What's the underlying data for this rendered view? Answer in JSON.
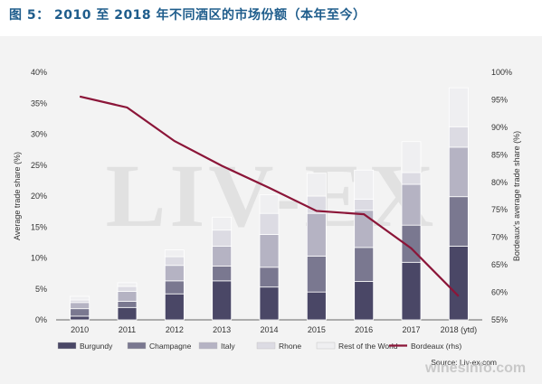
{
  "figure": {
    "title": "图 5： 2010 至 2018 年不同酒区的市场份额（本年至今）",
    "source": "Source: Liv-ex.com",
    "watermark_logo": "LIV-EX",
    "watermark_site": "winesinfo.com"
  },
  "chart_data": {
    "type": "bar",
    "stacked": true,
    "categories": [
      "2010",
      "2011",
      "2012",
      "2013",
      "2014",
      "2015",
      "2016",
      "2017",
      "2018 (ytd)"
    ],
    "ylabel": "Average trade share (%)",
    "y2label": "Bordeaux's average trade share (%)",
    "ylim": [
      0,
      40
    ],
    "y2lim": [
      55,
      100
    ],
    "yticks": [
      "0%",
      "5%",
      "10%",
      "15%",
      "20%",
      "25%",
      "30%",
      "35%",
      "40%"
    ],
    "y2ticks": [
      "55%",
      "60%",
      "65%",
      "70%",
      "75%",
      "80%",
      "85%",
      "90%",
      "95%",
      "100%"
    ],
    "series": [
      {
        "name": "Burgundy",
        "color": "#4a4766",
        "values": [
          0.6,
          2.0,
          4.2,
          6.3,
          5.3,
          4.5,
          6.2,
          9.3,
          11.9
        ]
      },
      {
        "name": "Champagne",
        "color": "#7a7890",
        "values": [
          1.2,
          1.0,
          2.1,
          2.4,
          3.2,
          5.8,
          5.5,
          6.0,
          8.0
        ]
      },
      {
        "name": "Italy",
        "color": "#b5b3c3",
        "values": [
          1.0,
          1.6,
          2.5,
          3.2,
          5.3,
          6.9,
          6.0,
          6.6,
          8.0
        ]
      },
      {
        "name": "Rhone",
        "color": "#dcdbe3",
        "values": [
          0.4,
          0.8,
          1.4,
          2.6,
          3.4,
          2.8,
          1.8,
          1.9,
          3.3
        ]
      },
      {
        "name": "Rest of the World",
        "color": "#efeff1",
        "values": [
          0.6,
          0.6,
          1.1,
          2.1,
          3.0,
          3.7,
          4.7,
          5.0,
          6.3
        ]
      }
    ],
    "line": {
      "name": "Bordeaux (rhs)",
      "color": "#8b1538",
      "axis": "right",
      "values": [
        95.6,
        93.6,
        87.5,
        83.0,
        79.0,
        74.8,
        74.2,
        68.0,
        59.3
      ]
    },
    "grid": false,
    "legend": "bottom"
  }
}
